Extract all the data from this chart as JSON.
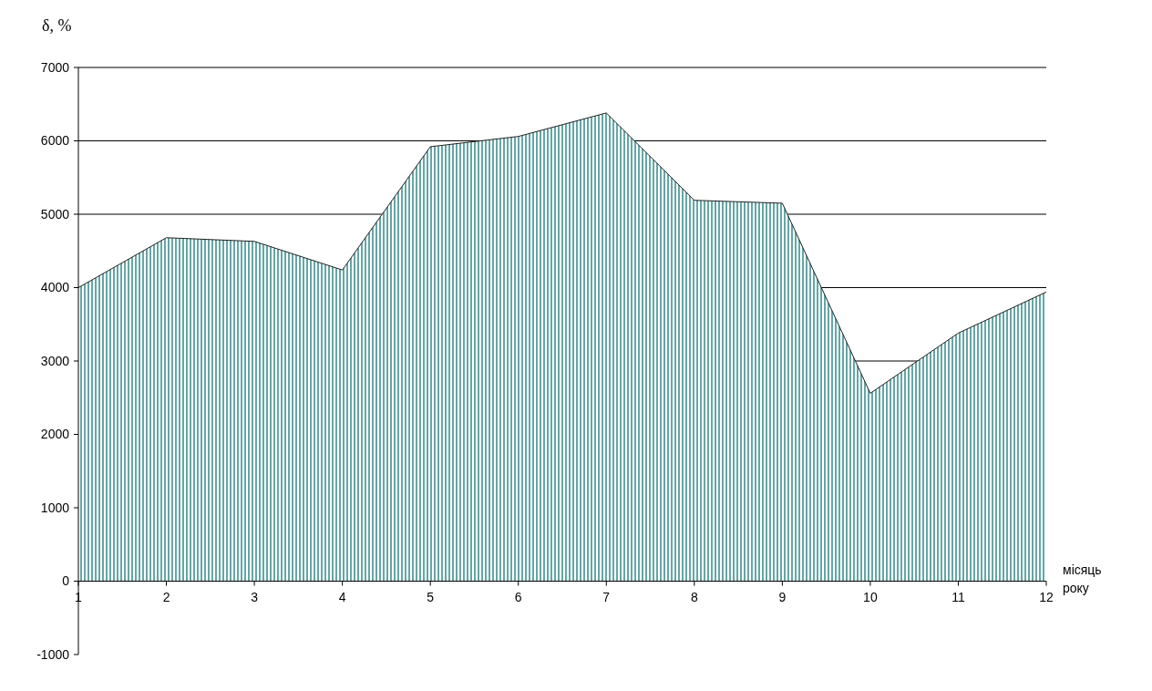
{
  "chart_data": {
    "type": "area",
    "ylabel": "δ, %",
    "xlabel": "місяць року",
    "x": [
      1,
      2,
      3,
      4,
      5,
      6,
      7,
      8,
      9,
      10,
      11,
      12
    ],
    "series": [
      {
        "color": "#3f8f8f",
        "values": [
          4000,
          4680,
          4630,
          4240,
          5920,
          6060,
          6380,
          5190,
          5150,
          2560,
          3380,
          3940
        ]
      }
    ],
    "xlim": [
      1,
      12
    ],
    "xticks": [
      1,
      2,
      3,
      4,
      5,
      6,
      7,
      8,
      9,
      10,
      11,
      12
    ],
    "ylim": [
      -1000,
      7000
    ],
    "yticks": [
      -1000,
      0,
      1000,
      2000,
      3000,
      4000,
      5000,
      6000,
      7000
    ],
    "grid": "y"
  }
}
